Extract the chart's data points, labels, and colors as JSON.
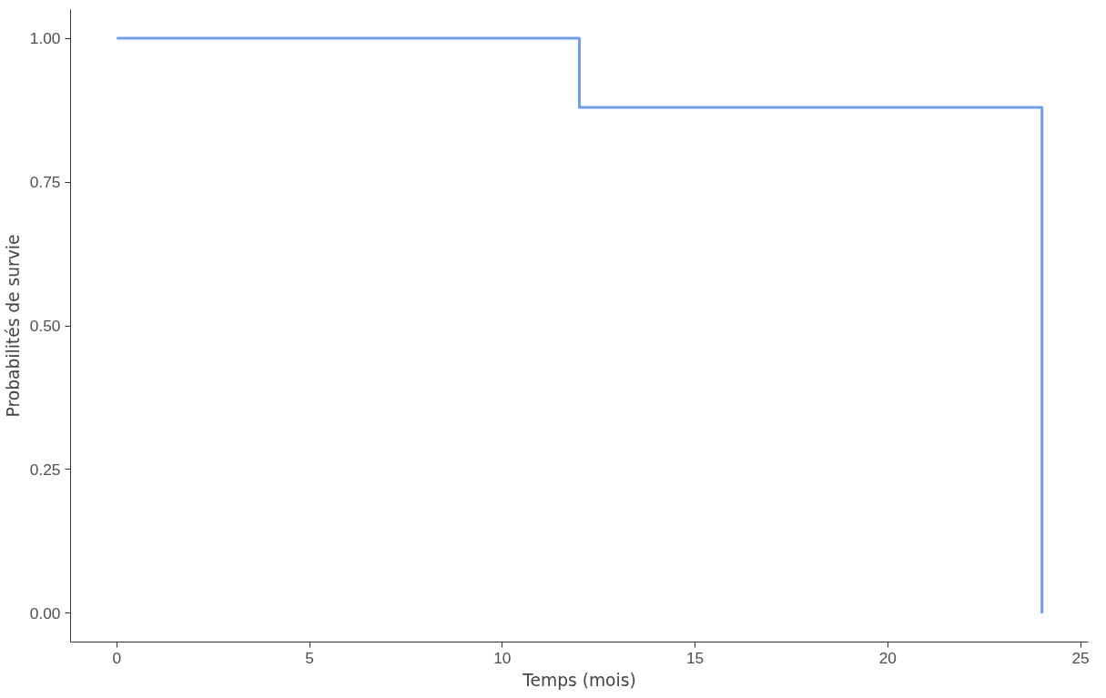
{
  "chart_data": {
    "type": "step",
    "xlabel": "Temps (mois)",
    "ylabel": "Probabilités de survie",
    "x": [
      0,
      12,
      24
    ],
    "series": [
      {
        "color": "#6f9fe8",
        "values": [
          1,
          0.88,
          0
        ]
      }
    ],
    "xlim": [
      -1.2,
      25.2
    ],
    "ylim": [
      -0.05,
      1.05
    ],
    "xticks": [
      0,
      5,
      10,
      15,
      20,
      25
    ],
    "yticks": [
      {
        "value": 0,
        "label": "0.00"
      },
      {
        "value": 0.25,
        "label": "0.25"
      },
      {
        "value": 0.5,
        "label": "0.50"
      },
      {
        "value": 0.75,
        "label": "0.75"
      },
      {
        "value": 1,
        "label": "1.00"
      }
    ],
    "grid": false
  }
}
